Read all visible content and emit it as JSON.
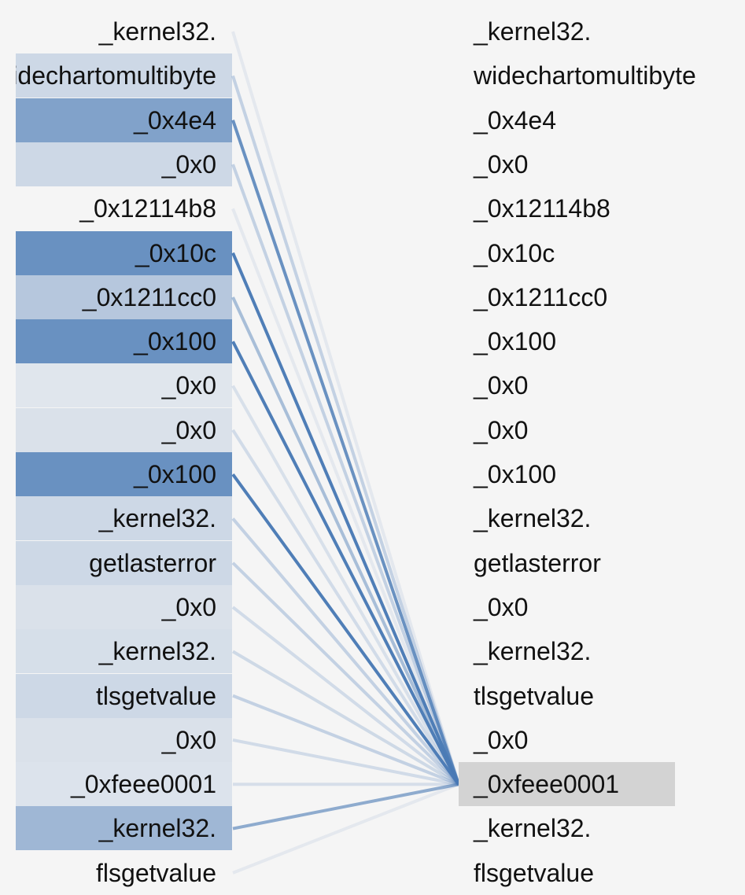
{
  "diagram": {
    "line_color": "#4a7ab5",
    "cell_color": "#4a7ab5",
    "selected_color": "#d3d3d3",
    "left_tokens": [
      {
        "label": "_kernel32.",
        "weight": 0.0
      },
      {
        "label": "widechartomultibyte",
        "weight": 0.2
      },
      {
        "label": "_0x4e4",
        "weight": 0.7
      },
      {
        "label": "_0x0",
        "weight": 0.2
      },
      {
        "label": "_0x12114b8",
        "weight": 0.0
      },
      {
        "label": "_0x10c",
        "weight": 0.85
      },
      {
        "label": "_0x1211cc0",
        "weight": 0.35
      },
      {
        "label": "_0x100",
        "weight": 0.85
      },
      {
        "label": "_0x0",
        "weight": 0.08
      },
      {
        "label": "_0x0",
        "weight": 0.12
      },
      {
        "label": "_0x100",
        "weight": 0.85
      },
      {
        "label": "_kernel32.",
        "weight": 0.2
      },
      {
        "label": "getlasterror",
        "weight": 0.2
      },
      {
        "label": "_0x0",
        "weight": 0.12
      },
      {
        "label": "_kernel32.",
        "weight": 0.14
      },
      {
        "label": "tlsgetvalue",
        "weight": 0.2
      },
      {
        "label": "_0x0",
        "weight": 0.12
      },
      {
        "label": "_0xfeee0001",
        "weight": 0.1
      },
      {
        "label": "_kernel32.",
        "weight": 0.5
      },
      {
        "label": "flsgetvalue",
        "weight": 0.0
      }
    ],
    "right_tokens": [
      {
        "label": "_kernel32."
      },
      {
        "label": "widechartomultibyte"
      },
      {
        "label": "_0x4e4"
      },
      {
        "label": "_0x0"
      },
      {
        "label": "_0x12114b8"
      },
      {
        "label": "_0x10c"
      },
      {
        "label": "_0x1211cc0"
      },
      {
        "label": "_0x100"
      },
      {
        "label": "_0x0"
      },
      {
        "label": "_0x0"
      },
      {
        "label": "_0x100"
      },
      {
        "label": "_kernel32."
      },
      {
        "label": "getlasterror"
      },
      {
        "label": "_0x0"
      },
      {
        "label": "_kernel32."
      },
      {
        "label": "tlsgetvalue"
      },
      {
        "label": "_0x0"
      },
      {
        "label": "_0xfeee0001",
        "selected": true
      },
      {
        "label": "_kernel32."
      },
      {
        "label": "flsgetvalue"
      }
    ]
  }
}
